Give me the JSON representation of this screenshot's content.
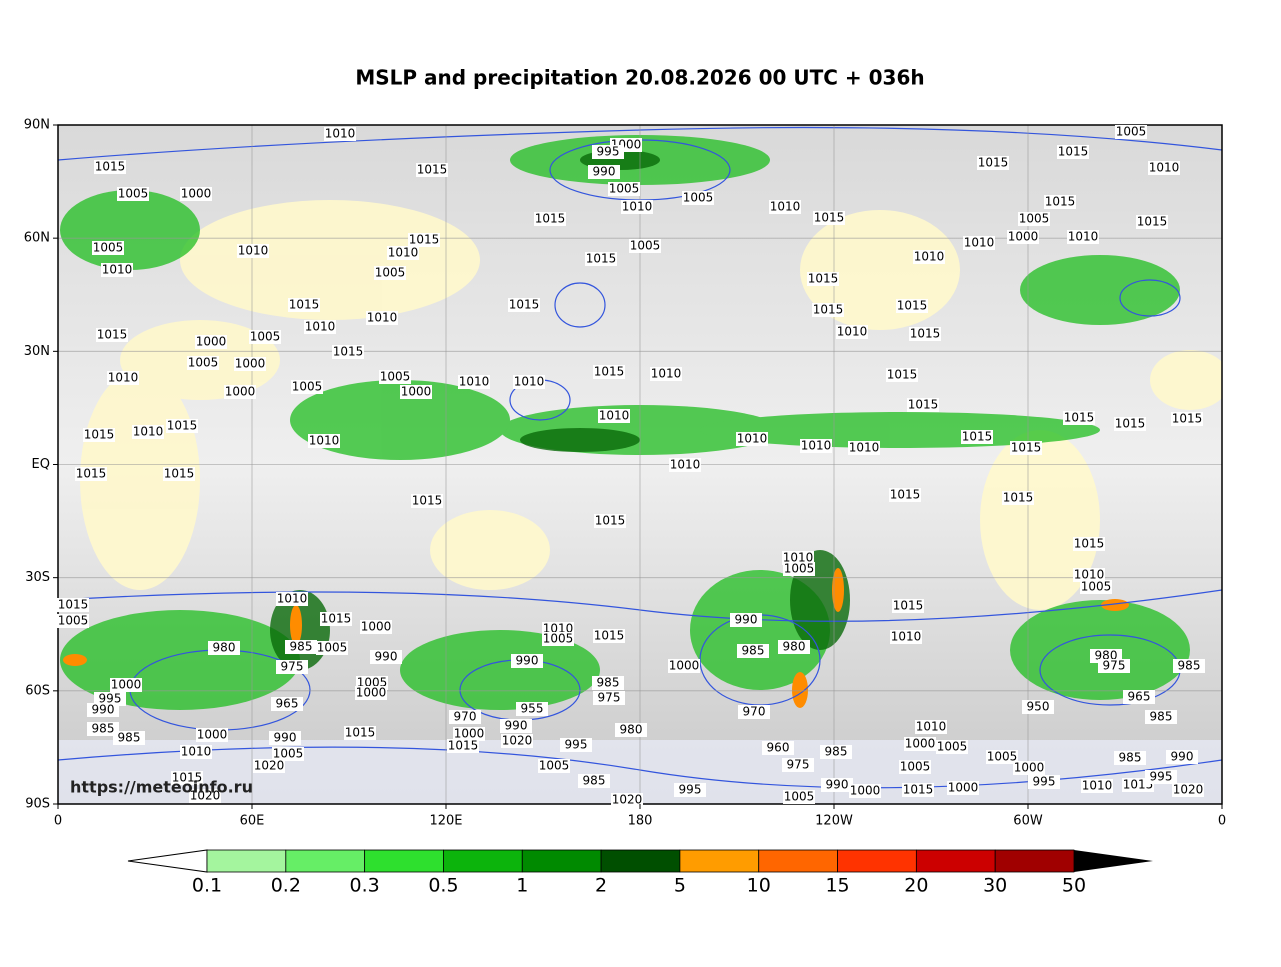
{
  "title": "MSLP and precipitation 20.08.2026 00 UTC + 036h",
  "y_axis_labels": [
    "90N",
    "60N",
    "30N",
    "EQ",
    "30S",
    "60S",
    "90S"
  ],
  "x_axis_labels": [
    "0",
    "60E",
    "120E",
    "180",
    "120W",
    "60W",
    "0"
  ],
  "watermark": "https://meteoinfo.ru",
  "colorbar": {
    "levels": [
      0.1,
      0.2,
      0.3,
      0.5,
      1,
      2,
      5,
      10,
      15,
      20,
      30,
      50
    ],
    "colors": [
      "#a4f59e",
      "#66ee66",
      "#2ee02e",
      "#0cb40c",
      "#008a00",
      "#004f00",
      "#ff9c00",
      "#ff6600",
      "#ff3300",
      "#cc0000",
      "#a00000"
    ]
  },
  "isobar_labels": [
    1010,
    1005,
    1000,
    995,
    1015,
    1015,
    990,
    1015,
    1015,
    1010,
    1005,
    1000,
    1005,
    1010,
    1005,
    1010,
    1015,
    1015,
    1015,
    1005,
    1010,
    1000,
    1015,
    1010,
    1015,
    1010,
    1005,
    1010,
    1005,
    1015,
    1010,
    1010,
    1005,
    1015,
    1015,
    1015,
    1015,
    1015,
    1010,
    1010,
    1010,
    1015,
    1015,
    1000,
    1005,
    1015,
    1005,
    1000,
    1010,
    1005,
    1010,
    1010,
    1015,
    1010,
    1015,
    1005,
    1000,
    1000,
    1010,
    1015,
    1015,
    1015,
    1015,
    1015,
    1010,
    1015,
    1010,
    1010,
    1010,
    1010,
    1015,
    1015,
    1015,
    1015,
    1010,
    1015,
    1015,
    1015,
    1015,
    1015,
    1010,
    1005,
    1010,
    1005,
    1015,
    1005,
    1010,
    1015,
    1000,
    1015,
    1010,
    1010,
    1005,
    1015,
    990,
    980,
    985,
    1005,
    990,
    985,
    980,
    990,
    980,
    975,
    985,
    975,
    1000,
    1000,
    985,
    1005,
    1000,
    975,
    995,
    990,
    965,
    955,
    965,
    970,
    950,
    970,
    990,
    985,
    985,
    985,
    1015,
    1000,
    1020,
    980,
    1000,
    990,
    1010,
    1010,
    1005,
    1015,
    995,
    960,
    985,
    1000,
    1005,
    1005,
    1020,
    1005,
    975,
    1005,
    1000,
    985,
    990,
    1015,
    985,
    990,
    1000,
    1015,
    1000,
    995,
    1010,
    1015,
    995,
    1020,
    1020,
    1005,
    1020,
    995
  ]
}
